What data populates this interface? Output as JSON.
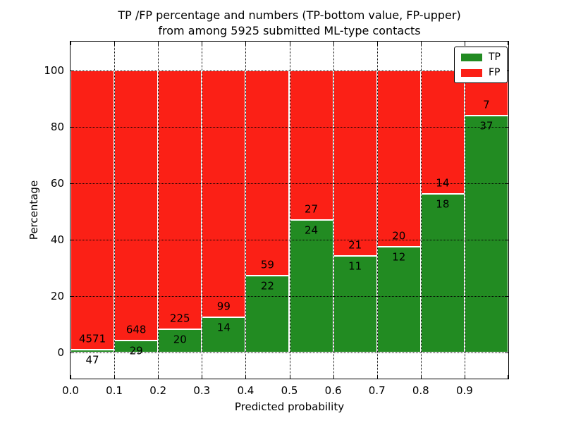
{
  "title": {
    "line1": "TP /FP percentage and numbers (TP-bottom value, FP-upper)",
    "line2": "from among 5925 submitted ML-type contacts"
  },
  "axes": {
    "xlabel": "Predicted probability",
    "ylabel": "Percentage",
    "x_tick_labels": [
      "0.0",
      "0.1",
      "0.2",
      "0.3",
      "0.4",
      "0.5",
      "0.6",
      "0.7",
      "0.8",
      "0.9"
    ],
    "y_tick_labels": [
      "0",
      "20",
      "40",
      "60",
      "80",
      "100"
    ]
  },
  "legend": {
    "entries": [
      {
        "label": "TP",
        "color": "#228b22"
      },
      {
        "label": "FP",
        "color": "#fb2016"
      }
    ]
  },
  "chart_data": {
    "type": "bar",
    "stacked": true,
    "normalized_to_percent": true,
    "title": "TP /FP percentage and numbers (TP-bottom value, FP-upper) from among 5925 submitted ML-type contacts",
    "xlabel": "Predicted probability",
    "ylabel": "Percentage",
    "total_contacts": 5925,
    "bin_width": 0.1,
    "categories": [
      "0.0-0.1",
      "0.1-0.2",
      "0.2-0.3",
      "0.3-0.4",
      "0.4-0.5",
      "0.5-0.6",
      "0.6-0.7",
      "0.7-0.8",
      "0.8-0.9",
      "0.9-1.0"
    ],
    "x_ticks": [
      0.0,
      0.1,
      0.2,
      0.3,
      0.4,
      0.5,
      0.6,
      0.7,
      0.8,
      0.9
    ],
    "y_ticks": [
      0,
      20,
      40,
      60,
      80,
      100
    ],
    "xlim": [
      0.0,
      1.0
    ],
    "ylim": [
      -9.5,
      110.5
    ],
    "grid": "dotted",
    "legend_position": "upper right",
    "series": [
      {
        "name": "TP",
        "color": "#228b22",
        "counts": [
          47,
          29,
          20,
          14,
          22,
          24,
          11,
          12,
          18,
          37
        ]
      },
      {
        "name": "FP",
        "color": "#fb2016",
        "counts": [
          4571,
          648,
          225,
          99,
          59,
          27,
          21,
          20,
          14,
          7
        ]
      }
    ],
    "tp_percent": [
      1.0,
      4.3,
      8.2,
      12.4,
      27.2,
      47.1,
      34.4,
      37.5,
      56.3,
      84.1
    ]
  }
}
